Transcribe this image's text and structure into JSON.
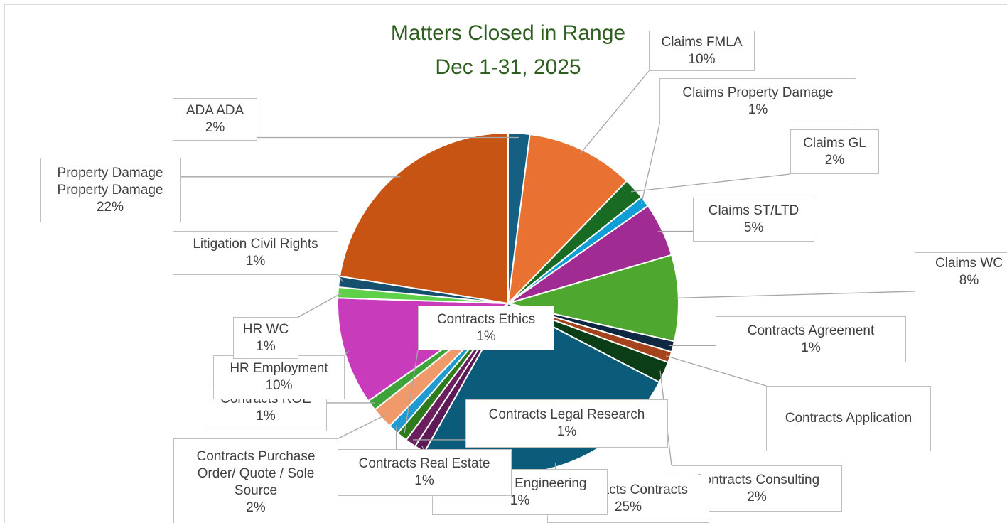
{
  "chart_data": {
    "type": "pie",
    "title": "Matters Closed in Range",
    "subtitle": "Dec 1-31, 2025",
    "categories": [
      "ADA ADA",
      "Claims FMLA",
      "Claims GL",
      "Claims Property Damage",
      "Claims ST/LTD",
      "Claims WC",
      "Contracts Agreement",
      "Contracts Application",
      "Contracts Consulting",
      "Contracts Contracts",
      "Contracts Engineering",
      "Contracts Legal Research",
      "Contracts Ethics",
      "Contracts Real Estate",
      "Contracts Purchase Order/ Quote / Sole Source",
      "Contracts ROE",
      "HR Employment",
      "HR WC",
      "Litigation Civil Rights",
      "Property Damage Property Damage"
    ],
    "values": [
      2,
      10,
      2,
      1,
      5,
      8,
      1,
      1,
      2,
      25,
      1,
      1,
      1,
      1,
      2,
      1,
      10,
      1,
      1,
      22
    ],
    "value_labels": [
      "2%",
      "10%",
      "2%",
      "1%",
      "5%",
      "8%",
      "1%",
      null,
      "2%",
      "25%",
      "1%",
      "1%",
      "1%",
      "1%",
      "2%",
      "1%",
      "10%",
      "1%",
      "1%",
      "22%"
    ],
    "colors": [
      "#156082",
      "#e97132",
      "#196b24",
      "#0f9ed5",
      "#a02b93",
      "#4ea72e",
      "#0e2841",
      "#a5431c",
      "#0b3d17",
      "#0b5b7a",
      "#5e1a56",
      "#6b1f5e",
      "#2f7a1c",
      "#1f9bd1",
      "#f09a6b",
      "#3ea33a",
      "#c83cbc",
      "#5ed04a",
      "#15506e",
      "#c85414"
    ]
  }
}
